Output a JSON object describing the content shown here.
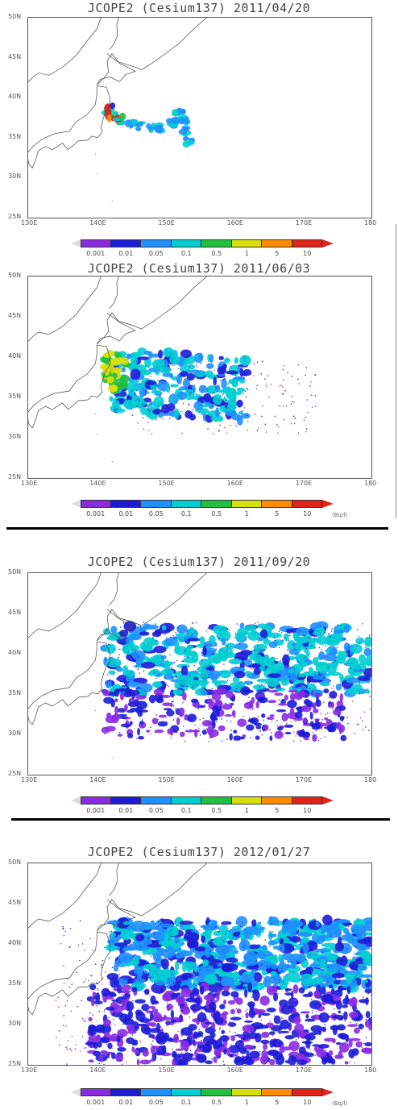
{
  "panels": [
    {
      "title": "JCOPE2 (Cesium137) 2011/04/20",
      "unit": ""
    },
    {
      "title": "JCOPE2 (Cesium137) 2011/06/03",
      "unit": "(Bq/l)"
    },
    {
      "title": "JCOPE2 (Cesium137) 2011/09/20",
      "unit": ""
    },
    {
      "title": "JCOPE2 (Cesium137) 2012/01/27",
      "unit": "(Bq/l)"
    }
  ],
  "axes": {
    "x_ticks": [
      "130E",
      "140E",
      "150E",
      "160E",
      "170E",
      "180"
    ],
    "y_ticks": [
      "50N",
      "45N",
      "40N",
      "35N",
      "30N",
      "25N"
    ],
    "xlim": [
      130,
      180
    ],
    "ylim": [
      25,
      50
    ]
  },
  "colorbar": {
    "labels": [
      "0.001",
      "0.01",
      "0.05",
      "0.1",
      "0.5",
      "1",
      "5",
      "10"
    ],
    "colors": [
      "#ffffff",
      "#8a2be2",
      "#1c1cd6",
      "#1e90ff",
      "#00ced1",
      "#20c040",
      "#d7e00a",
      "#ff8c00",
      "#e0241a"
    ]
  },
  "chart_data": [
    {
      "type": "heatmap",
      "title": "JCOPE2 (Cesium137) 2011/04/20",
      "xlim": [
        130,
        180
      ],
      "ylim": [
        25,
        50
      ],
      "xlabel": "",
      "ylabel": "",
      "plume_extent": {
        "lon": [
          141,
          154
        ],
        "lat": [
          33.5,
          40
        ],
        "peak_level": "10"
      }
    },
    {
      "type": "heatmap",
      "title": "JCOPE2 (Cesium137) 2011/06/03",
      "xlim": [
        130,
        180
      ],
      "ylim": [
        25,
        50
      ],
      "xlabel": "",
      "ylabel": "",
      "plume_extent": {
        "lon": [
          141,
          172
        ],
        "lat": [
          30.5,
          41.5
        ],
        "peak_level": "1"
      }
    },
    {
      "type": "heatmap",
      "title": "JCOPE2 (Cesium137) 2011/09/20",
      "xlim": [
        130,
        180
      ],
      "ylim": [
        25,
        50
      ],
      "xlabel": "",
      "ylabel": "",
      "plume_extent": {
        "lon": [
          141,
          180
        ],
        "lat": [
          29,
          44
        ],
        "peak_level": "0.1"
      }
    },
    {
      "type": "heatmap",
      "title": "JCOPE2 (Cesium137) 2012/01/27",
      "xlim": [
        130,
        180
      ],
      "ylim": [
        25,
        50
      ],
      "xlabel": "",
      "ylabel": "",
      "plume_extent": {
        "lon": [
          138,
          180
        ],
        "lat": [
          25,
          43
        ],
        "peak_level": "0.1"
      }
    }
  ]
}
